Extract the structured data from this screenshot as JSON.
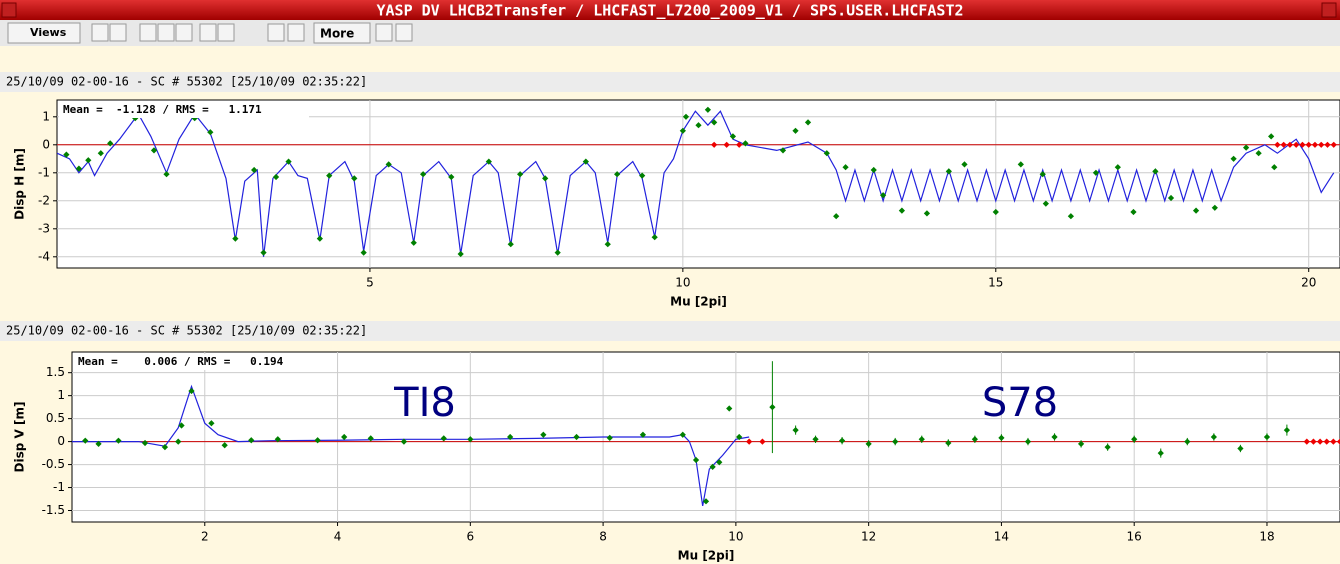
{
  "window": {
    "title": "YASP DV LHCB2Transfer / LHCFAST_L7200_2009_V1 / SPS.USER.LHCFAST2"
  },
  "toolbar": {
    "buttons": [
      "Views",
      "More"
    ]
  },
  "panels": [
    {
      "header": "25/10/09 02-00-16 - SC # 55302  [25/10/09 02:35:22]"
    },
    {
      "header": "25/10/09 02-00-16 - SC # 55302  [25/10/09 02:35:22]"
    }
  ],
  "chart_data": [
    {
      "type": "line",
      "xlabel": "Mu [2pi]",
      "ylabel": "Disp H [m]",
      "stats": "Mean =  -1.128 / RMS =   1.171",
      "xlim": [
        0,
        20.5
      ],
      "ylim": [
        -4.4,
        1.6
      ],
      "xticks": [
        5,
        10,
        15,
        20
      ],
      "yticks": [
        -4,
        -3,
        -2,
        -1,
        0,
        1
      ],
      "grid": true,
      "reference": {
        "value": 0,
        "color": "#cc0000"
      },
      "annotations": [],
      "series": [
        {
          "type": "line",
          "color": "#2222dd",
          "x": [
            0.0,
            0.2,
            0.35,
            0.5,
            0.6,
            0.8,
            1.0,
            1.3,
            1.5,
            1.75,
            1.95,
            2.2,
            2.45,
            2.7,
            2.85,
            3.0,
            3.2,
            3.3,
            3.45,
            3.7,
            3.85,
            4.0,
            4.2,
            4.35,
            4.6,
            4.75,
            4.9,
            5.1,
            5.3,
            5.5,
            5.7,
            5.85,
            6.1,
            6.3,
            6.45,
            6.65,
            6.9,
            7.05,
            7.25,
            7.4,
            7.65,
            7.8,
            8.0,
            8.2,
            8.45,
            8.6,
            8.8,
            8.95,
            9.2,
            9.35,
            9.55,
            9.7,
            9.85,
            10.0,
            10.2,
            10.4,
            10.6,
            10.8,
            11.0,
            11.5,
            12.0,
            12.3,
            12.45,
            12.6,
            12.75,
            12.9,
            13.05,
            13.2,
            13.35,
            13.5,
            13.65,
            13.8,
            13.95,
            14.1,
            14.25,
            14.4,
            14.55,
            14.7,
            14.85,
            15.0,
            15.15,
            15.3,
            15.45,
            15.6,
            15.75,
            15.9,
            16.05,
            16.2,
            16.35,
            16.5,
            16.65,
            16.8,
            16.95,
            17.1,
            17.25,
            17.4,
            17.55,
            17.7,
            17.85,
            18.0,
            18.15,
            18.3,
            18.45,
            18.6,
            18.8,
            19.0,
            19.3,
            19.5,
            19.8,
            20.0,
            20.2,
            20.4
          ],
          "values": [
            -0.3,
            -0.5,
            -1.0,
            -0.6,
            -1.1,
            -0.3,
            0.2,
            1.1,
            0.3,
            -1.0,
            0.2,
            1.1,
            0.4,
            -1.2,
            -3.4,
            -1.3,
            -0.9,
            -4.0,
            -1.2,
            -0.6,
            -1.1,
            -1.2,
            -3.4,
            -1.1,
            -0.6,
            -1.3,
            -3.8,
            -1.1,
            -0.7,
            -1.0,
            -3.5,
            -1.1,
            -0.6,
            -1.2,
            -3.9,
            -1.1,
            -0.6,
            -1.0,
            -3.6,
            -1.1,
            -0.6,
            -1.2,
            -3.9,
            -1.1,
            -0.6,
            -1.0,
            -3.5,
            -1.1,
            -0.6,
            -1.2,
            -3.3,
            -1.0,
            -0.5,
            0.5,
            1.2,
            0.7,
            1.2,
            0.2,
            0.0,
            -0.2,
            0.1,
            -0.3,
            -0.9,
            -2.0,
            -0.9,
            -2.0,
            -0.9,
            -2.0,
            -0.9,
            -2.0,
            -0.9,
            -2.0,
            -0.9,
            -2.0,
            -0.9,
            -2.0,
            -0.9,
            -2.0,
            -0.9,
            -2.0,
            -0.9,
            -2.0,
            -0.9,
            -2.0,
            -0.9,
            -2.0,
            -0.9,
            -2.0,
            -0.9,
            -2.0,
            -0.9,
            -2.0,
            -0.9,
            -2.0,
            -0.9,
            -2.0,
            -0.9,
            -2.0,
            -0.9,
            -2.0,
            -0.9,
            -2.0,
            -0.9,
            -2.0,
            -0.8,
            -0.3,
            0.0,
            -0.3,
            0.2,
            -0.5,
            -1.7,
            -1.0
          ]
        },
        {
          "type": "scatter",
          "color": "#008000",
          "x": [
            0.15,
            0.35,
            0.5,
            0.7,
            0.85,
            1.25,
            1.55,
            1.75,
            2.2,
            2.45,
            2.85,
            3.15,
            3.3,
            3.5,
            3.7,
            4.2,
            4.35,
            4.75,
            4.9,
            5.3,
            5.7,
            5.85,
            6.3,
            6.45,
            6.9,
            7.25,
            7.4,
            7.8,
            8.0,
            8.45,
            8.8,
            8.95,
            9.35,
            9.55,
            10.0,
            10.05,
            10.25,
            10.4,
            10.5,
            10.8,
            11.0,
            11.6,
            11.8,
            12.0,
            12.3,
            12.45,
            12.6,
            13.05,
            13.2,
            13.5,
            13.9,
            14.25,
            14.5,
            15.0,
            15.4,
            15.75,
            15.8,
            16.2,
            16.6,
            16.95,
            17.2,
            17.55,
            17.8,
            18.2,
            18.5,
            18.8,
            19.0,
            19.2,
            19.4,
            19.45
          ],
          "values": [
            -0.35,
            -0.85,
            -0.55,
            -0.3,
            0.05,
            0.95,
            -0.2,
            -1.05,
            0.95,
            0.45,
            -3.35,
            -0.9,
            -3.85,
            -1.15,
            -0.6,
            -3.35,
            -1.1,
            -1.2,
            -3.85,
            -0.7,
            -3.5,
            -1.05,
            -1.15,
            -3.9,
            -0.6,
            -3.55,
            -1.05,
            -1.2,
            -3.85,
            -0.6,
            -3.55,
            -1.05,
            -1.1,
            -3.3,
            0.5,
            1.0,
            0.7,
            1.25,
            0.8,
            0.3,
            0.05,
            -0.2,
            0.5,
            0.8,
            -0.3,
            -2.55,
            -0.8,
            -0.9,
            -1.8,
            -2.35,
            -2.45,
            -0.95,
            -0.7,
            -2.4,
            -0.7,
            -1.05,
            -2.1,
            -2.55,
            -1.0,
            -0.8,
            -2.4,
            -0.95,
            -1.9,
            -2.35,
            -2.25,
            -0.5,
            -0.1,
            -0.3,
            0.3,
            -0.8
          ]
        },
        {
          "type": "scatter",
          "color": "#ee0000",
          "x": [
            10.5,
            10.7,
            10.9,
            19.5,
            19.6,
            19.7,
            19.8,
            19.9,
            20.0,
            20.1,
            20.2,
            20.3,
            20.4
          ],
          "values": [
            0,
            0,
            0,
            0,
            0,
            0,
            0,
            0,
            0,
            0,
            0,
            0,
            0
          ]
        }
      ]
    },
    {
      "type": "line",
      "xlabel": "Mu [2pi]",
      "ylabel": "Disp V [m]",
      "stats": "Mean =    0.006 / RMS =   0.194",
      "xlim": [
        0,
        19.1
      ],
      "ylim": [
        -1.75,
        1.95
      ],
      "xticks": [
        2,
        4,
        6,
        8,
        10,
        12,
        14,
        16,
        18
      ],
      "yticks": [
        -1.5,
        -1,
        -0.5,
        0,
        0.5,
        1,
        1.5
      ],
      "grid": true,
      "reference": {
        "value": 0,
        "color": "#cc0000"
      },
      "annotations": [
        "TI8",
        "S78"
      ],
      "series": [
        {
          "type": "line",
          "color": "#2222dd",
          "x": [
            0,
            0.5,
            1.0,
            1.4,
            1.6,
            1.8,
            2.0,
            2.2,
            2.5,
            3,
            4,
            5,
            6,
            7,
            8,
            9,
            9.2,
            9.3,
            9.4,
            9.5,
            9.6,
            9.8,
            10.0,
            10.2
          ],
          "values": [
            0,
            0,
            0,
            -0.1,
            0.3,
            1.2,
            0.4,
            0.15,
            0,
            0.02,
            0.03,
            0.05,
            0.05,
            0.07,
            0.1,
            0.1,
            0.15,
            0.0,
            -0.4,
            -1.4,
            -0.6,
            -0.3,
            0.05,
            0.1
          ]
        },
        {
          "type": "scatter",
          "color": "#008000",
          "x": [
            0.2,
            0.4,
            0.7,
            1.1,
            1.4,
            1.6,
            1.65,
            1.8,
            2.1,
            2.3,
            2.7,
            3.1,
            3.7,
            4.1,
            4.5,
            5.0,
            5.6,
            6.0,
            6.6,
            7.1,
            7.6,
            8.1,
            8.6,
            9.2,
            9.4,
            9.55,
            9.65,
            9.75,
            9.9,
            10.05,
            10.55,
            10.9,
            11.2,
            11.6,
            12.0,
            12.4,
            12.8,
            13.2,
            13.6,
            14.0,
            14.4,
            14.8,
            15.2,
            15.6,
            16.0,
            16.4,
            16.8,
            17.2,
            17.6,
            18.0,
            18.3
          ],
          "values": [
            0.02,
            -0.05,
            0.02,
            -0.03,
            -0.12,
            0.0,
            0.35,
            1.1,
            0.4,
            -0.08,
            0.03,
            0.05,
            0.03,
            0.1,
            0.07,
            0.0,
            0.07,
            0.05,
            0.1,
            0.15,
            0.1,
            0.08,
            0.15,
            0.15,
            -0.4,
            -1.3,
            -0.55,
            -0.45,
            0.72,
            0.1,
            0.75,
            0.25,
            0.05,
            0.02,
            -0.05,
            0.0,
            0.05,
            -0.03,
            0.05,
            0.08,
            0.0,
            0.1,
            -0.05,
            -0.12,
            0.05,
            -0.25,
            0.0,
            0.1,
            -0.15,
            0.1,
            0.25
          ],
          "errors": [
            0.02,
            0.02,
            0.02,
            0.02,
            0.02,
            0.02,
            0.02,
            0.02,
            0.02,
            0.02,
            0.02,
            0.02,
            0.02,
            0.02,
            0.02,
            0.02,
            0.02,
            0.02,
            0.02,
            0.02,
            0.02,
            0.02,
            0.02,
            0.02,
            0.03,
            0.03,
            0.03,
            0.03,
            0.03,
            0.05,
            1.0,
            0.1,
            0.08,
            0.08,
            0.08,
            0.08,
            0.08,
            0.08,
            0.08,
            0.08,
            0.08,
            0.08,
            0.08,
            0.08,
            0.08,
            0.1,
            0.08,
            0.08,
            0.08,
            0.08,
            0.12
          ]
        },
        {
          "type": "scatter",
          "color": "#ee0000",
          "x": [
            10.2,
            10.4,
            18.6,
            18.7,
            18.8,
            18.9,
            19.0,
            19.1
          ],
          "values": [
            0,
            0,
            0,
            0,
            0,
            0,
            0,
            0
          ]
        }
      ]
    }
  ]
}
